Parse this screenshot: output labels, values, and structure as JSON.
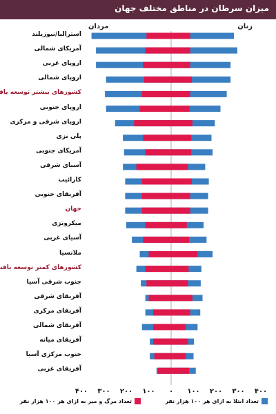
{
  "title": "میزان سرطان در مناطق مختلف جهان",
  "labels": {
    "women": "زنان",
    "men": "مردان"
  },
  "legend": {
    "incidence": "تعداد ابتلا به ازای هر ۱۰۰ هزار نفر",
    "mortality": "تعداد مرگ و میر به ازای هر ۱۰۰ هزار نفر"
  },
  "colors": {
    "incidence": "#3a7fc1",
    "mortality": "#e0194d",
    "title_bg": "#5c2a3e",
    "group_label": "#9b1b30"
  },
  "chart_data": {
    "type": "bar",
    "orientation": "horizontal-butterfly",
    "xlim": [
      -400,
      400
    ],
    "ticks": [
      {
        "value": -400,
        "label": "۴۰۰"
      },
      {
        "value": -300,
        "label": "۳۰۰"
      },
      {
        "value": -200,
        "label": "۲۰۰"
      },
      {
        "value": -100,
        "label": "۱۰۰"
      },
      {
        "value": 0,
        "label": "۰"
      },
      {
        "value": 100,
        "label": "۱۰۰"
      },
      {
        "value": 200,
        "label": "۲۰۰"
      },
      {
        "value": 300,
        "label": "۳۰۰"
      },
      {
        "value": 400,
        "label": "۴۰۰"
      }
    ],
    "categories": [
      "استرالیا/نیوزیلند",
      "آمریکای شمالی",
      "اروپای غربی",
      "اروپای شمالی",
      "کشورهای بیشتر توسعه یافته",
      "اروپای جنوبی",
      "اروپای شرقی و مرکزی",
      "پلی نزی",
      "آمریکای جنوبی",
      "آسیای شرقی",
      "کارائیب",
      "آفریقای جنوبی",
      "جهان",
      "میکرونزی",
      "آسیای غربی",
      "ملانسیا",
      "کشورهای کمتر توسعه یافته",
      "جنوب شرقی آسیا",
      "آفریقای شرقی",
      "آفریقای مرکزی",
      "آفریقای شمالی",
      "آفریقای میانه",
      "جنوب مرکزی آسیا",
      "آفریقای غربی"
    ],
    "group_rows": [
      4,
      12,
      16
    ],
    "series": [
      {
        "name": "تعداد ابتلا به ازای هر ۱۰۰ هزار نفر - زنان",
        "key": "women_incidence",
        "values": [
          280,
          295,
          265,
          265,
          248,
          220,
          195,
          180,
          185,
          152,
          168,
          165,
          165,
          145,
          158,
          185,
          135,
          132,
          140,
          130,
          118,
          102,
          100,
          110
        ]
      },
      {
        "name": "تعداد مرگ و میر به ازای هر ۱۰۰ هزار نفر - زنان",
        "key": "women_mortality",
        "values": [
          85,
          85,
          85,
          92,
          85,
          82,
          95,
          90,
          90,
          75,
          92,
          85,
          85,
          70,
          80,
          118,
          78,
          75,
          95,
          85,
          65,
          75,
          65,
          80
        ]
      },
      {
        "name": "تعداد ابتلا به ازای هر ۱۰۰ هزار نفر - مردان",
        "key": "men_incidence",
        "values": [
          -355,
          -335,
          -335,
          -290,
          -295,
          -290,
          -250,
          -215,
          -210,
          -215,
          -205,
          -205,
          -205,
          -200,
          -175,
          -140,
          -155,
          -135,
          -115,
          -115,
          -130,
          -95,
          -95,
          -65
        ]
      },
      {
        "name": "تعداد مرگ و میر به ازای هر ۱۰۰ هزار نفر - مردان",
        "key": "men_mortality",
        "values": [
          -110,
          -115,
          -125,
          -120,
          -130,
          -140,
          -165,
          -125,
          -115,
          -155,
          -130,
          -130,
          -130,
          -115,
          -125,
          -100,
          -115,
          -110,
          -100,
          -80,
          -80,
          -80,
          -75,
          -60
        ]
      }
    ]
  }
}
